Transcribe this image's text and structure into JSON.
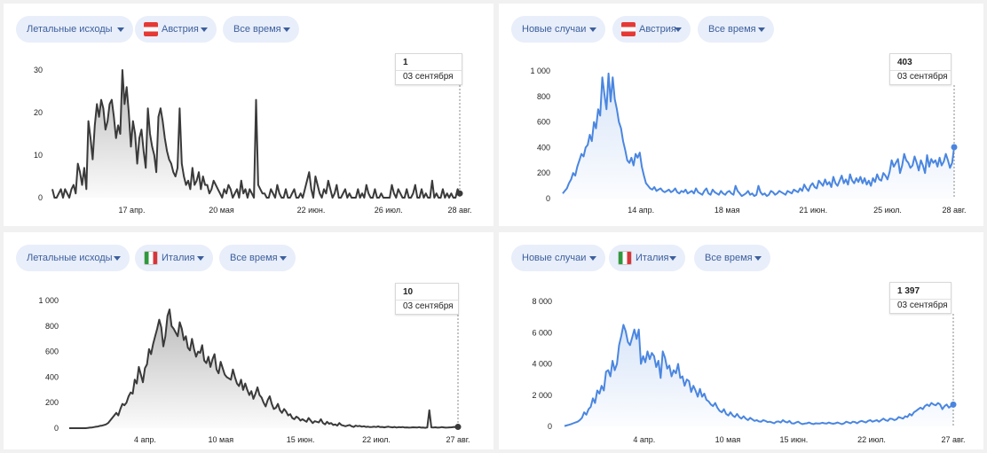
{
  "panels": [
    {
      "metric": "Летальные исходы",
      "country": "Австрия",
      "flag": "at",
      "period": "Все время",
      "tooltip": {
        "value": "1",
        "date": "03 сентября"
      },
      "chart_data": {
        "type": "area",
        "color": "#3a3a3a",
        "yticks": [
          "0",
          "10",
          "20",
          "30"
        ],
        "ylim": [
          0,
          30
        ],
        "xticks": [
          "17 апр.",
          "20 мая",
          "22 июн.",
          "26 июл.",
          "28 авг."
        ],
        "x_start": "2020-03-01",
        "x_end": "2020-09-03",
        "series": [
          {
            "values": [
              2,
              0,
              0,
              1,
              2,
              0,
              2,
              1,
              0,
              2,
              3,
              1,
              8,
              6,
              3,
              7,
              2,
              18,
              14,
              9,
              17,
              22,
              19,
              23,
              21,
              16,
              18,
              22,
              23,
              19,
              14,
              17,
              15,
              30,
              22,
              26,
              20,
              12,
              18,
              15,
              8,
              14,
              16,
              11,
              7,
              21,
              15,
              12,
              10,
              6,
              19,
              21,
              18,
              14,
              11,
              9,
              8,
              6,
              5,
              7,
              21,
              8,
              5,
              3,
              4,
              2,
              7,
              3,
              4,
              6,
              2,
              5,
              3,
              3,
              1,
              2,
              4,
              3,
              2,
              1,
              0,
              2,
              1,
              3,
              2,
              0,
              1,
              2,
              0,
              4,
              1,
              2,
              0,
              2,
              1,
              0,
              23,
              3,
              2,
              1,
              1,
              0,
              0,
              2,
              1,
              0,
              3,
              1,
              0,
              0,
              2,
              0,
              0,
              1,
              2,
              0,
              0,
              1,
              0,
              2,
              4,
              6,
              2,
              0,
              5,
              3,
              1,
              0,
              2,
              1,
              4,
              2,
              0,
              1,
              3,
              0,
              0,
              1,
              2,
              0,
              1,
              0,
              0,
              0,
              2,
              0,
              1,
              0,
              3,
              1,
              0,
              0,
              2,
              0,
              0,
              1,
              0,
              0,
              0,
              0,
              3,
              1,
              0,
              2,
              1,
              0,
              0,
              2,
              0,
              0,
              1,
              3,
              0,
              0,
              2,
              0,
              1,
              0,
              0,
              4,
              0,
              1,
              0,
              0,
              2,
              0,
              1,
              0,
              1,
              0,
              0,
              2,
              1
            ]
          }
        ]
      }
    },
    {
      "metric": "Новые случаи",
      "country": "Австрия",
      "flag": "at",
      "period": "Все время",
      "tooltip": {
        "value": "403",
        "date": "03 сентября"
      },
      "chart_data": {
        "type": "area",
        "color": "#4a86e0",
        "yticks": [
          "0",
          "200",
          "400",
          "600",
          "800",
          "1 000"
        ],
        "ylim": [
          0,
          1000
        ],
        "xticks": [
          "14 апр.",
          "18 мая",
          "21 июн.",
          "25 июл.",
          "28 авг."
        ],
        "x_start": "2020-03-01",
        "x_end": "2020-09-03",
        "series": [
          {
            "values": [
              40,
              60,
              80,
              120,
              150,
              200,
              180,
              250,
              300,
              350,
              330,
              400,
              420,
              500,
              450,
              600,
              550,
              700,
              650,
              950,
              820,
              700,
              980,
              760,
              950,
              780,
              700,
              600,
              550,
              450,
              380,
              300,
              280,
              320,
              260,
              350,
              320,
              360,
              250,
              180,
              120,
              100,
              80,
              70,
              90,
              60,
              70,
              80,
              60,
              50,
              60,
              70,
              50,
              60,
              80,
              50,
              40,
              60,
              50,
              70,
              40,
              50,
              60,
              40,
              80,
              50,
              40,
              30,
              60,
              80,
              40,
              30,
              70,
              50,
              40,
              30,
              60,
              40,
              30,
              50,
              60,
              40,
              30,
              100,
              60,
              40,
              20,
              30,
              40,
              60,
              30,
              40,
              20,
              30,
              100,
              50,
              30,
              40,
              20,
              30,
              60,
              50,
              30,
              40,
              60,
              50,
              40,
              30,
              60,
              50,
              40,
              70,
              60,
              50,
              80,
              60,
              110,
              80,
              60,
              100,
              120,
              90,
              80,
              140,
              120,
              100,
              150,
              110,
              130,
              90,
              170,
              120,
              100,
              140,
              180,
              120,
              150,
              110,
              190,
              140,
              120,
              160,
              130,
              170,
              120,
              160,
              110,
              140,
              100,
              160,
              130,
              190,
              150,
              140,
              200,
              180,
              150,
              210,
              300,
              250,
              280,
              310,
              200,
              260,
              350,
              300,
              280,
              240,
              260,
              330,
              280,
              220,
              300,
              260,
              200,
              340,
              250,
              310,
              280,
              300,
              250,
              320,
              260,
              290,
              350,
              300,
              240,
              280,
              403
            ]
          }
        ]
      }
    },
    {
      "metric": "Летальные исходы",
      "country": "Италия",
      "flag": "it",
      "period": "Все время",
      "tooltip": {
        "value": "10",
        "date": "03 сентября"
      },
      "chart_data": {
        "type": "area",
        "color": "#3a3a3a",
        "yticks": [
          "0",
          "200",
          "400",
          "600",
          "800",
          "1 000"
        ],
        "ylim": [
          0,
          1000
        ],
        "xticks": [
          "4 апр.",
          "10 мая",
          "15 июн.",
          "22 июл.",
          "27 авг."
        ],
        "x_start": "2020-02-22",
        "x_end": "2020-09-03",
        "series": [
          {
            "values": [
              0,
              0,
              0,
              0,
              0,
              0,
              0,
              0,
              0,
              2,
              4,
              5,
              8,
              11,
              13,
              18,
              20,
              25,
              30,
              40,
              60,
              80,
              100,
              120,
              100,
              150,
              190,
              180,
              200,
              250,
              280,
              270,
              380,
              350,
              480,
              420,
              360,
              470,
              500,
              620,
              580,
              660,
              720,
              780,
              850,
              790,
              640,
              720,
              880,
              930,
              800,
              780,
              750,
              720,
              830,
              780,
              690,
              720,
              630,
              610,
              700,
              620,
              560,
              600,
              590,
              650,
              530,
              510,
              560,
              480,
              540,
              580,
              460,
              430,
              520,
              470,
              420,
              400,
              390,
              380,
              460,
              400,
              350,
              330,
              380,
              300,
              350,
              300,
              260,
              290,
              230,
              270,
              320,
              260,
              240,
              200,
              170,
              220,
              250,
              190,
              150,
              160,
              190,
              140,
              120,
              150,
              130,
              100,
              110,
              80,
              70,
              90,
              80,
              60,
              70,
              60,
              50,
              80,
              60,
              40,
              55,
              50,
              45,
              70,
              40,
              30,
              50,
              35,
              40,
              25,
              30,
              20,
              40,
              25,
              20,
              15,
              20,
              25,
              15,
              10,
              20,
              15,
              18,
              12,
              15,
              10,
              12,
              8,
              10,
              12,
              9,
              14,
              8,
              10,
              6,
              10,
              12,
              8,
              6,
              10,
              5,
              8,
              7,
              9,
              5,
              6,
              4,
              5,
              7,
              6,
              5,
              8,
              4,
              5,
              3,
              6,
              140,
              6,
              5,
              7,
              4,
              5,
              8,
              6,
              4,
              5,
              6,
              7,
              10,
              8,
              10
            ]
          }
        ]
      }
    },
    {
      "metric": "Новые случаи",
      "country": "Италия",
      "flag": "it",
      "period": "Все время",
      "tooltip": {
        "value": "1 397",
        "date": "03 сентября"
      },
      "chart_data": {
        "type": "area",
        "color": "#4a86e0",
        "yticks": [
          "0",
          "2 000",
          "4 000",
          "6 000",
          "8 000"
        ],
        "ylim": [
          0,
          8000
        ],
        "xticks": [
          "4 апр.",
          "10 мая",
          "15 июн.",
          "22 июл.",
          "27 авг."
        ],
        "x_start": "2020-02-22",
        "x_end": "2020-09-03",
        "series": [
          {
            "values": [
              20,
              60,
              100,
              150,
              200,
              250,
              300,
              400,
              550,
              900,
              750,
              1100,
              1250,
              1800,
              1500,
              2300,
              2100,
              2600,
              2300,
              3500,
              3600,
              3200,
              4200,
              3600,
              4000,
              5200,
              5800,
              6500,
              6100,
              5400,
              5200,
              5700,
              6200,
              5600,
              6200,
              4000,
              4500,
              4100,
              4800,
              4300,
              4700,
              4500,
              3800,
              4200,
              3100,
              4800,
              4400,
              3700,
              3900,
              3200,
              3600,
              3400,
              4000,
              3100,
              3200,
              2600,
              3000,
              2900,
              2200,
              2600,
              2300,
              1900,
              2400,
              1900,
              2100,
              1700,
              1600,
              1400,
              1300,
              1500,
              1200,
              1000,
              900,
              1100,
              800,
              700,
              900,
              700,
              600,
              800,
              600,
              500,
              650,
              500,
              400,
              550,
              450,
              350,
              400,
              320,
              300,
              400,
              350,
              280,
              300,
              250,
              200,
              300,
              320,
              250,
              400,
              300,
              250,
              350,
              200,
              180,
              250,
              300,
              200,
              150,
              180,
              200,
              250,
              180,
              150,
              200,
              180,
              190,
              230,
              200,
              180,
              250,
              200,
              170,
              200,
              250,
              200,
              150,
              200,
              300,
              250,
              200,
              300,
              280,
              200,
              300,
              350,
              300,
              250,
              350,
              400,
              300,
              350,
              400,
              300,
              400,
              500,
              400,
              350,
              500,
              480,
              400,
              450,
              600,
              550,
              500,
              650,
              600,
              800,
              700,
              900,
              1000,
              1100,
              1200,
              1100,
              1300,
              1400,
              1300,
              1500,
              1400,
              1350,
              1500,
              1400,
              1100,
              1300,
              1400,
              1200,
              1300,
              1397
            ]
          }
        ]
      }
    }
  ]
}
